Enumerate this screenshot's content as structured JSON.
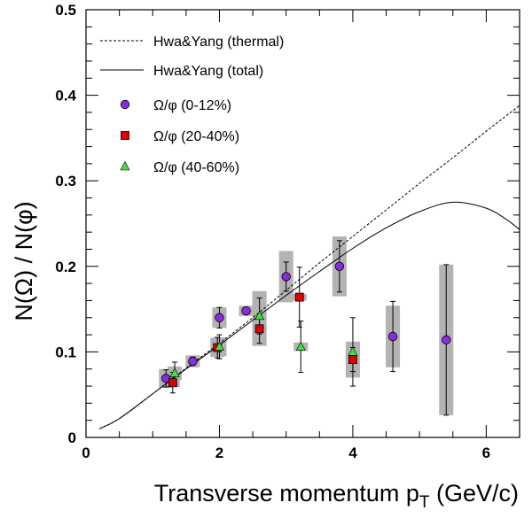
{
  "chart_data": {
    "type": "scatter",
    "xlabel_main": "Transverse momentum p",
    "xlabel_sub": "T",
    "xlabel_unit": " (GeV/c)",
    "ylabel": "N(Ω) / N(φ)",
    "xlim": [
      0,
      6.5
    ],
    "ylim": [
      0,
      0.5
    ],
    "xticks": [
      "0",
      "2",
      "4",
      "6"
    ],
    "yticks": [
      "0",
      "0.1",
      "0.2",
      "0.3",
      "0.4",
      "0.5"
    ],
    "grid": false,
    "legend_position": "top-left",
    "curves": [
      {
        "name": "Hwa&Yang (thermal)",
        "style": "dashed",
        "color": "#000000",
        "x": [
          0.2,
          0.5,
          1.0,
          1.5,
          2.0,
          2.5,
          3.0,
          3.5,
          4.0,
          4.5,
          5.0,
          5.5,
          6.0,
          6.5
        ],
        "y": [
          0.01,
          0.022,
          0.051,
          0.081,
          0.11,
          0.14,
          0.172,
          0.204,
          0.235,
          0.266,
          0.297,
          0.327,
          0.358,
          0.388
        ]
      },
      {
        "name": "Hwa&Yang (total)",
        "style": "solid",
        "color": "#000000",
        "x": [
          0.2,
          0.5,
          1.0,
          1.5,
          2.0,
          2.5,
          3.0,
          3.5,
          4.0,
          4.5,
          5.0,
          5.5,
          6.0,
          6.3,
          6.5
        ],
        "y": [
          0.01,
          0.022,
          0.051,
          0.08,
          0.108,
          0.137,
          0.166,
          0.194,
          0.221,
          0.245,
          0.264,
          0.275,
          0.268,
          0.255,
          0.243
        ]
      }
    ],
    "series": [
      {
        "name": "Ω/φ (0-12%)",
        "marker": "circle",
        "color": "#8a2be2",
        "points": [
          {
            "x": 1.2,
            "y": 0.069,
            "stat": 0.01,
            "sys": 0.011
          },
          {
            "x": 1.6,
            "y": 0.089,
            "stat": 0.005,
            "sys": 0.007
          },
          {
            "x": 2.0,
            "y": 0.14,
            "stat": 0.012,
            "sys": 0.012
          },
          {
            "x": 2.4,
            "y": 0.148,
            "stat": 0.003,
            "sys": 0.006
          },
          {
            "x": 3.0,
            "y": 0.188,
            "stat": 0.017,
            "sys": 0.03
          },
          {
            "x": 3.8,
            "y": 0.2,
            "stat": 0.03,
            "sys": 0.035
          },
          {
            "x": 4.6,
            "y": 0.118,
            "stat": 0.041,
            "sys": 0.036
          },
          {
            "x": 5.4,
            "y": 0.114,
            "stat": 0.088,
            "sys": 0.088
          }
        ]
      },
      {
        "name": "Ω/φ (20-40%)",
        "marker": "square",
        "color": "#dd0000",
        "points": [
          {
            "x": 1.3,
            "y": 0.064,
            "stat": 0.012,
            "sys": 0.005
          },
          {
            "x": 1.97,
            "y": 0.105,
            "stat": 0.012,
            "sys": 0.011
          },
          {
            "x": 2.6,
            "y": 0.127,
            "stat": 0.017,
            "sys": 0.02
          },
          {
            "x": 3.2,
            "y": 0.164,
            "stat": 0.035,
            "sys": 0.004
          },
          {
            "x": 4.0,
            "y": 0.091,
            "stat": 0.014,
            "sys": 0.021
          }
        ]
      },
      {
        "name": "Ω/φ (40-60%)",
        "marker": "triangle",
        "color": "#44dd44",
        "points": [
          {
            "x": 1.33,
            "y": 0.075,
            "stat": 0.013,
            "sys": 0.008
          },
          {
            "x": 2.0,
            "y": 0.106,
            "stat": 0.014,
            "sys": 0.011
          },
          {
            "x": 2.6,
            "y": 0.142,
            "stat": 0.021,
            "sys": 0.029
          },
          {
            "x": 3.22,
            "y": 0.106,
            "stat": 0.03,
            "sys": 0.005
          },
          {
            "x": 4.0,
            "y": 0.1,
            "stat": 0.04,
            "sys": 0.009
          }
        ]
      }
    ]
  }
}
